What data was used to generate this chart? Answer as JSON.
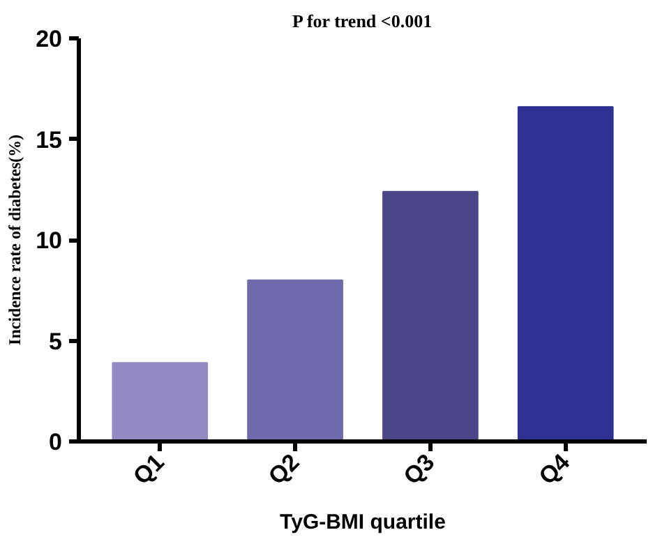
{
  "chart_data": {
    "type": "bar",
    "title": "P for trend <0.001",
    "xlabel": "TyG-BMI quartile",
    "ylabel": "Incidence rate of diabetes(%)",
    "categories": [
      "Q1",
      "Q2",
      "Q3",
      "Q4"
    ],
    "values": [
      3.9,
      8.0,
      12.4,
      16.6
    ],
    "colors": [
      "#928bc4",
      "#6e6aab",
      "#4a4688",
      "#2e3192"
    ],
    "ylim": [
      0,
      20
    ],
    "yticks": [
      0,
      5,
      10,
      15,
      20
    ],
    "grid": false
  }
}
